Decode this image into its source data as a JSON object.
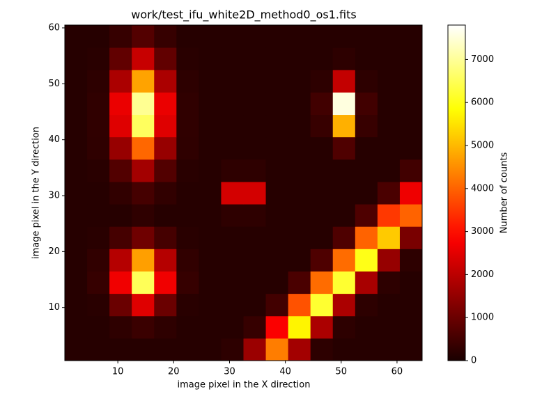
{
  "chart_data": {
    "type": "heatmap",
    "title": "work/test_ifu_white2D_method0_os1.fits",
    "xlabel": "image pixel in the X direction",
    "ylabel": "image pixel in the Y direction",
    "colorbar_label": "Number of counts",
    "colormap": "hot",
    "xlim": [
      0.5,
      64.5
    ],
    "ylim": [
      0.5,
      60.5
    ],
    "zlim": [
      0,
      7800
    ],
    "xticks": [
      10,
      20,
      30,
      40,
      50,
      60
    ],
    "yticks": [
      10,
      20,
      30,
      40,
      50,
      60
    ],
    "zticks": [
      0,
      1000,
      2000,
      3000,
      4000,
      5000,
      6000,
      7000
    ],
    "x": [
      2.5,
      6.5,
      10.5,
      14.5,
      18.5,
      22.5,
      26.5,
      30.5,
      34.5,
      38.5,
      42.5,
      46.5,
      50.5,
      54.5,
      58.5,
      62.5
    ],
    "y": [
      2.5,
      6.5,
      10.5,
      14.5,
      18.5,
      22.5,
      26.5,
      30.5,
      34.5,
      38.5,
      42.5,
      46.5,
      50.5,
      54.5,
      58.5
    ],
    "z": [
      [
        150,
        150,
        150,
        150,
        150,
        150,
        150,
        230,
        1600,
        4300,
        1700,
        240,
        150,
        150,
        150,
        150
      ],
      [
        150,
        150,
        250,
        400,
        250,
        150,
        150,
        150,
        350,
        2800,
        5700,
        1800,
        240,
        150,
        150,
        150
      ],
      [
        150,
        180,
        1000,
        2450,
        1000,
        180,
        150,
        150,
        150,
        500,
        3800,
        6200,
        1800,
        240,
        150,
        150
      ],
      [
        150,
        350,
        2670,
        6500,
        2670,
        350,
        150,
        150,
        150,
        150,
        600,
        4100,
        6200,
        1760,
        240,
        150
      ],
      [
        150,
        290,
        1930,
        4700,
        1930,
        290,
        150,
        150,
        150,
        150,
        150,
        650,
        4100,
        6000,
        1540,
        240
      ],
      [
        150,
        180,
        530,
        1050,
        530,
        180,
        150,
        150,
        150,
        150,
        150,
        150,
        650,
        4000,
        5200,
        1180
      ],
      [
        150,
        150,
        150,
        260,
        150,
        150,
        150,
        250,
        250,
        150,
        150,
        150,
        150,
        650,
        3500,
        4000
      ],
      [
        150,
        150,
        290,
        530,
        290,
        150,
        150,
        2300,
        2300,
        150,
        150,
        150,
        150,
        150,
        590,
        2650
      ],
      [
        150,
        190,
        700,
        1700,
        700,
        190,
        150,
        250,
        250,
        150,
        150,
        150,
        150,
        150,
        150,
        490
      ],
      [
        150,
        260,
        1550,
        4050,
        1550,
        260,
        150,
        150,
        150,
        150,
        150,
        150,
        660,
        150,
        150,
        150
      ],
      [
        150,
        270,
        2450,
        6550,
        2450,
        270,
        150,
        150,
        150,
        150,
        150,
        360,
        4900,
        360,
        150,
        150
      ],
      [
        150,
        270,
        2600,
        6950,
        2600,
        270,
        150,
        150,
        150,
        150,
        150,
        480,
        7550,
        480,
        150,
        150
      ],
      [
        150,
        230,
        1800,
        4750,
        1800,
        230,
        150,
        150,
        150,
        150,
        150,
        235,
        2100,
        235,
        150,
        150
      ],
      [
        150,
        185,
        880,
        2150,
        880,
        185,
        150,
        150,
        150,
        150,
        150,
        150,
        240,
        150,
        150,
        150
      ],
      [
        150,
        150,
        350,
        710,
        350,
        150,
        150,
        150,
        150,
        150,
        150,
        150,
        150,
        150,
        150,
        150
      ]
    ]
  }
}
